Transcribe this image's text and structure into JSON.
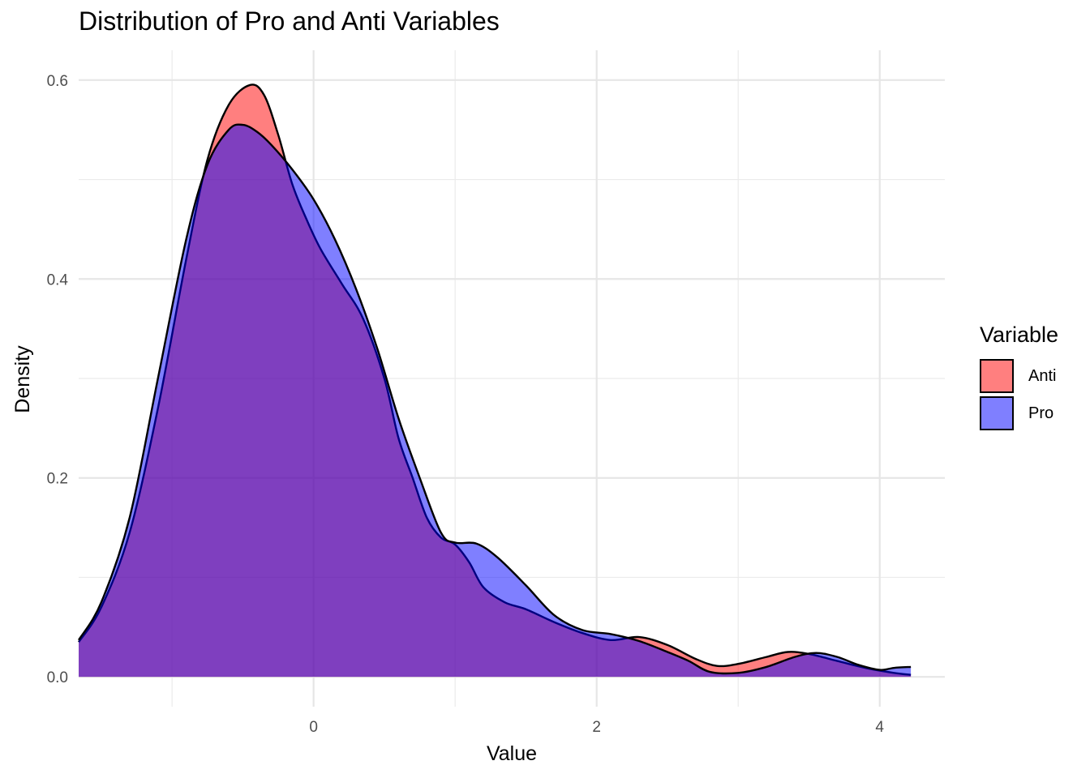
{
  "chart_data": {
    "type": "area",
    "title": "Distribution of Pro and Anti Variables",
    "xlabel": "Value",
    "ylabel": "Density",
    "xlim": [
      -1.66,
      4.46
    ],
    "ylim": [
      -0.03,
      0.63
    ],
    "x_ticks": [
      0,
      2,
      4
    ],
    "x_tick_labels": [
      "0",
      "2",
      "4"
    ],
    "y_ticks": [
      0.0,
      0.2,
      0.4,
      0.6
    ],
    "y_tick_labels": [
      "0.0",
      "0.2",
      "0.4",
      "0.6"
    ],
    "grid": true,
    "legend": {
      "title": "Variable",
      "position": "right"
    },
    "series": [
      {
        "name": "Anti",
        "color": "#ff0000",
        "opacity": 0.5,
        "points": [
          [
            -1.66,
            0.035
          ],
          [
            -1.5,
            0.07
          ],
          [
            -1.3,
            0.145
          ],
          [
            -1.1,
            0.27
          ],
          [
            -0.9,
            0.42
          ],
          [
            -0.75,
            0.52
          ],
          [
            -0.6,
            0.575
          ],
          [
            -0.45,
            0.595
          ],
          [
            -0.35,
            0.585
          ],
          [
            -0.25,
            0.545
          ],
          [
            -0.15,
            0.495
          ],
          [
            -0.05,
            0.46
          ],
          [
            0.05,
            0.43
          ],
          [
            0.2,
            0.395
          ],
          [
            0.35,
            0.36
          ],
          [
            0.5,
            0.3
          ],
          [
            0.6,
            0.24
          ],
          [
            0.7,
            0.2
          ],
          [
            0.8,
            0.16
          ],
          [
            0.9,
            0.14
          ],
          [
            1.0,
            0.133
          ],
          [
            1.1,
            0.115
          ],
          [
            1.2,
            0.09
          ],
          [
            1.35,
            0.075
          ],
          [
            1.5,
            0.068
          ],
          [
            1.7,
            0.055
          ],
          [
            1.9,
            0.044
          ],
          [
            2.1,
            0.037
          ],
          [
            2.3,
            0.04
          ],
          [
            2.5,
            0.032
          ],
          [
            2.7,
            0.018
          ],
          [
            2.85,
            0.011
          ],
          [
            3.0,
            0.013
          ],
          [
            3.2,
            0.02
          ],
          [
            3.35,
            0.025
          ],
          [
            3.5,
            0.023
          ],
          [
            3.7,
            0.016
          ],
          [
            3.9,
            0.009
          ],
          [
            4.1,
            0.004
          ],
          [
            4.22,
            0.002
          ]
        ]
      },
      {
        "name": "Pro",
        "color": "#0000ff",
        "opacity": 0.5,
        "points": [
          [
            -1.66,
            0.037
          ],
          [
            -1.5,
            0.075
          ],
          [
            -1.3,
            0.16
          ],
          [
            -1.1,
            0.3
          ],
          [
            -0.9,
            0.44
          ],
          [
            -0.75,
            0.515
          ],
          [
            -0.6,
            0.55
          ],
          [
            -0.5,
            0.555
          ],
          [
            -0.4,
            0.548
          ],
          [
            -0.3,
            0.535
          ],
          [
            -0.15,
            0.51
          ],
          [
            0.0,
            0.48
          ],
          [
            0.15,
            0.44
          ],
          [
            0.3,
            0.39
          ],
          [
            0.45,
            0.33
          ],
          [
            0.6,
            0.26
          ],
          [
            0.75,
            0.2
          ],
          [
            0.9,
            0.145
          ],
          [
            1.0,
            0.135
          ],
          [
            1.15,
            0.134
          ],
          [
            1.3,
            0.12
          ],
          [
            1.5,
            0.092
          ],
          [
            1.7,
            0.062
          ],
          [
            1.9,
            0.047
          ],
          [
            2.1,
            0.043
          ],
          [
            2.3,
            0.036
          ],
          [
            2.5,
            0.025
          ],
          [
            2.65,
            0.016
          ],
          [
            2.8,
            0.005
          ],
          [
            3.0,
            0.004
          ],
          [
            3.2,
            0.01
          ],
          [
            3.4,
            0.02
          ],
          [
            3.55,
            0.024
          ],
          [
            3.7,
            0.02
          ],
          [
            3.85,
            0.012
          ],
          [
            4.0,
            0.007
          ],
          [
            4.1,
            0.009
          ],
          [
            4.22,
            0.01
          ]
        ]
      }
    ]
  }
}
